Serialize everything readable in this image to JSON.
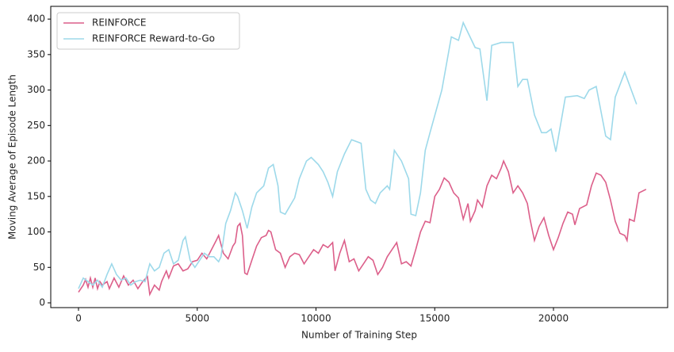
{
  "chart_data": {
    "type": "line",
    "xlabel": "Number of Training Step",
    "ylabel": "Moving Average of Episode Length",
    "xlim": [
      -1169,
      24808
    ],
    "ylim": [
      -6.7,
      418
    ],
    "xticks": [
      0,
      5000,
      10000,
      15000,
      20000
    ],
    "yticks": [
      0,
      50,
      100,
      150,
      200,
      250,
      300,
      350,
      400
    ],
    "legend": "upper left",
    "series": [
      {
        "name": "REINFORCE",
        "color": "#dc5f8a",
        "x": [
          0,
          200,
          300,
          400,
          500,
          600,
          700,
          800,
          900,
          1000,
          1200,
          1300,
          1500,
          1700,
          1900,
          2100,
          2300,
          2500,
          2700,
          2900,
          3000,
          3200,
          3400,
          3500,
          3700,
          3800,
          4000,
          4200,
          4400,
          4600,
          4800,
          5000,
          5200,
          5400,
          5600,
          5800,
          5900,
          6100,
          6300,
          6500,
          6600,
          6700,
          6800,
          6900,
          7000,
          7100,
          7300,
          7500,
          7700,
          7900,
          8000,
          8100,
          8300,
          8500,
          8700,
          8900,
          9100,
          9300,
          9500,
          9700,
          9900,
          10100,
          10300,
          10500,
          10700,
          10800,
          11000,
          11200,
          11400,
          11600,
          11800,
          12000,
          12200,
          12400,
          12600,
          12800,
          13000,
          13200,
          13400,
          13600,
          13800,
          14000,
          14200,
          14400,
          14600,
          14800,
          15000,
          15200,
          15400,
          15600,
          15800,
          16000,
          16200,
          16400,
          16500,
          16700,
          16800,
          17000,
          17200,
          17400,
          17600,
          17800,
          17900,
          18100,
          18300,
          18500,
          18700,
          18900,
          19000,
          19200,
          19400,
          19600,
          19800,
          20000,
          20200,
          20400,
          20600,
          20800,
          20900,
          21100,
          21400,
          21600,
          21800,
          22000,
          22200,
          22400,
          22600,
          22800,
          23000,
          23100,
          23200,
          23400,
          23600,
          23900
        ],
        "values": [
          15,
          25,
          33,
          22,
          35,
          22,
          35,
          20,
          30,
          25,
          30,
          20,
          35,
          22,
          38,
          25,
          32,
          20,
          30,
          37,
          12,
          25,
          18,
          30,
          45,
          35,
          52,
          55,
          45,
          48,
          58,
          60,
          70,
          62,
          75,
          88,
          95,
          70,
          62,
          80,
          85,
          108,
          112,
          95,
          42,
          40,
          60,
          80,
          92,
          95,
          102,
          100,
          75,
          70,
          50,
          65,
          70,
          68,
          55,
          65,
          75,
          70,
          82,
          78,
          85,
          45,
          70,
          88,
          58,
          62,
          45,
          55,
          65,
          60,
          40,
          50,
          65,
          75,
          85,
          55,
          58,
          52,
          75,
          100,
          115,
          113,
          150,
          160,
          176,
          170,
          155,
          148,
          118,
          140,
          115,
          130,
          145,
          135,
          165,
          180,
          175,
          190,
          200,
          185,
          155,
          165,
          155,
          140,
          120,
          88,
          108,
          120,
          95,
          75,
          92,
          112,
          128,
          125,
          110,
          133,
          138,
          165,
          183,
          180,
          170,
          145,
          115,
          98,
          95,
          88,
          118,
          115,
          155,
          160
        ]
      },
      {
        "name": "REINFORCE Reward-to-Go",
        "color": "#9dd9ea",
        "x": [
          0,
          200,
          400,
          600,
          800,
          1000,
          1200,
          1400,
          1600,
          1800,
          2000,
          2200,
          2400,
          2600,
          2800,
          3000,
          3200,
          3400,
          3600,
          3800,
          4000,
          4200,
          4400,
          4500,
          4700,
          4900,
          5100,
          5300,
          5500,
          5700,
          5900,
          6000,
          6200,
          6400,
          6600,
          6700,
          6900,
          7100,
          7300,
          7500,
          7800,
          8000,
          8200,
          8400,
          8500,
          8700,
          9100,
          9300,
          9600,
          9800,
          10100,
          10300,
          10500,
          10700,
          10900,
          11200,
          11500,
          11900,
          12100,
          12300,
          12500,
          12700,
          13000,
          13100,
          13300,
          13600,
          13900,
          14000,
          14200,
          14400,
          14600,
          14800,
          15300,
          15700,
          16000,
          16200,
          16700,
          16900,
          17200,
          17400,
          17800,
          18300,
          18500,
          18700,
          18900,
          19200,
          19500,
          19700,
          19900,
          20100,
          20500,
          21000,
          21300,
          21500,
          21800,
          22200,
          22400,
          22600,
          23000,
          23500
        ],
        "values": [
          20,
          35,
          30,
          25,
          32,
          22,
          40,
          55,
          40,
          32,
          35,
          25,
          30,
          32,
          30,
          55,
          45,
          50,
          70,
          75,
          55,
          60,
          88,
          93,
          60,
          50,
          60,
          70,
          65,
          65,
          58,
          65,
          112,
          130,
          155,
          150,
          130,
          105,
          135,
          155,
          165,
          190,
          195,
          165,
          128,
          125,
          148,
          175,
          200,
          205,
          195,
          185,
          170,
          150,
          185,
          210,
          230,
          225,
          160,
          145,
          140,
          155,
          165,
          160,
          215,
          200,
          175,
          125,
          123,
          155,
          215,
          240,
          300,
          375,
          370,
          395,
          360,
          358,
          285,
          363,
          367,
          367,
          305,
          315,
          315,
          265,
          240,
          240,
          245,
          213,
          290,
          292,
          288,
          300,
          305,
          235,
          230,
          290,
          325,
          280
        ]
      }
    ]
  }
}
